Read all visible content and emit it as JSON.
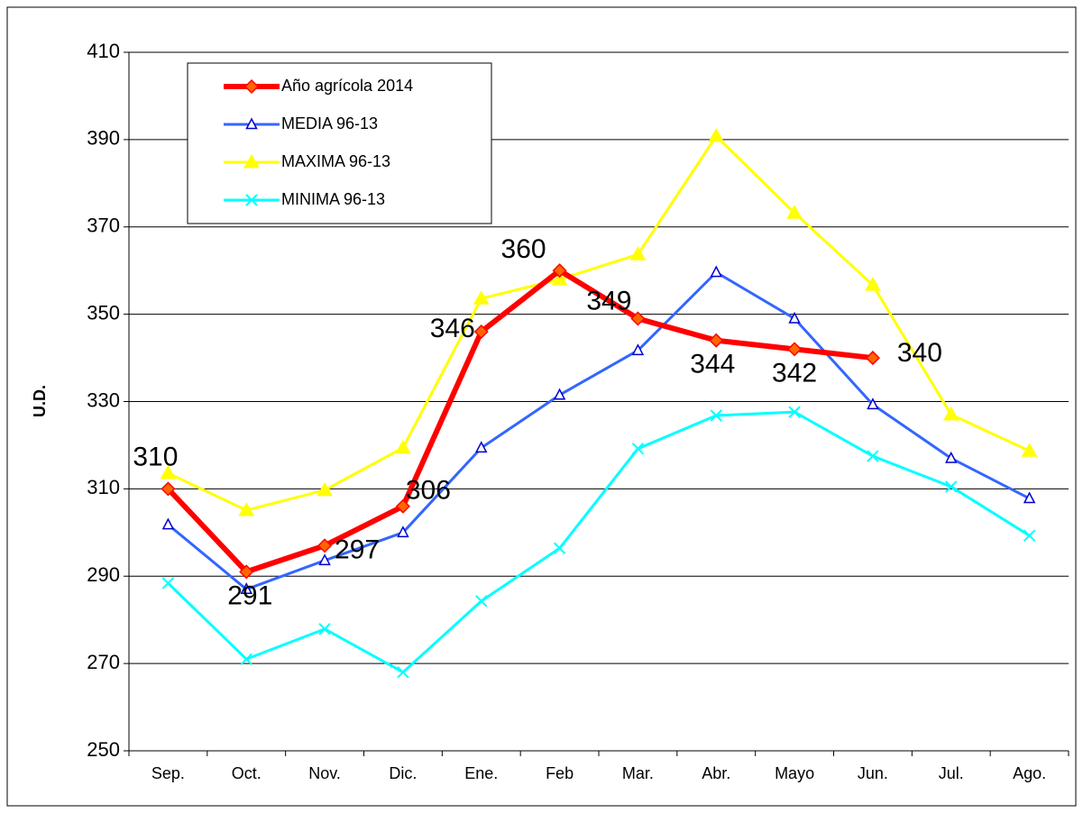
{
  "chart_data": {
    "type": "line",
    "y_label": "U.D.",
    "categories": [
      "Sep.",
      "Oct.",
      "Nov.",
      "Dic.",
      "Ene.",
      "Feb",
      "Mar.",
      "Abr.",
      "Mayo",
      "Jun.",
      "Jul.",
      "Ago."
    ],
    "series": [
      {
        "name": "Año agrícola 2014",
        "color": "#ff0000",
        "marker": "diamond",
        "data_labels": true,
        "values": [
          310,
          291,
          297,
          306,
          346,
          360,
          349,
          344,
          342,
          340,
          null,
          null
        ]
      },
      {
        "name": "MEDIA 96-13",
        "color": "#3366ff",
        "marker": "triangle-open",
        "values": [
          301.8,
          287,
          293.6,
          300,
          319.4,
          331.5,
          341.7,
          359.6,
          349,
          329.3,
          317,
          307.8
        ]
      },
      {
        "name": "MAXIMA 96-13",
        "color": "#ffff00",
        "marker": "triangle",
        "values": [
          313.6,
          305.1,
          309.7,
          319.4,
          353.6,
          358,
          363.7,
          390.8,
          373.2,
          356.7,
          327,
          318.7
        ]
      },
      {
        "name": "MINIMA 96-13",
        "color": "#00ffff",
        "marker": "x",
        "values": [
          288.4,
          271,
          277.9,
          268,
          284.3,
          296.4,
          319.2,
          326.8,
          327.6,
          317.5,
          310.5,
          299.3
        ]
      }
    ],
    "ylim": [
      250,
      410
    ],
    "yticks": [
      250,
      270,
      290,
      310,
      330,
      350,
      370,
      390,
      410
    ],
    "grid": true
  }
}
